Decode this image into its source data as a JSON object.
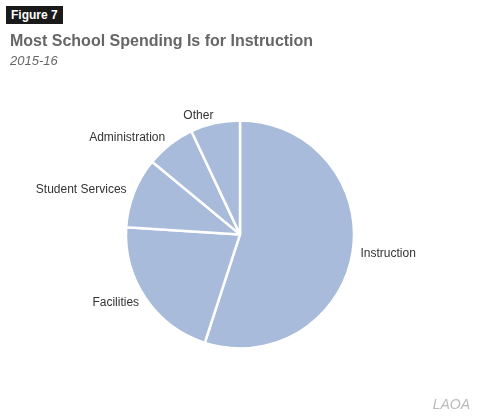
{
  "chart_data": {
    "type": "pie",
    "figure_label": "Figure 7",
    "title": "Most School Spending Is for Instruction",
    "subtitle": "2015-16",
    "categories": [
      "Instruction",
      "Facilities",
      "Student Services",
      "Administration",
      "Other"
    ],
    "values": [
      55,
      21,
      10,
      7,
      7
    ],
    "colors": [
      "#a8bbda",
      "#a8bbda",
      "#a8bbda",
      "#a8bbda",
      "#a8bbda"
    ],
    "watermark": "LAOA"
  }
}
